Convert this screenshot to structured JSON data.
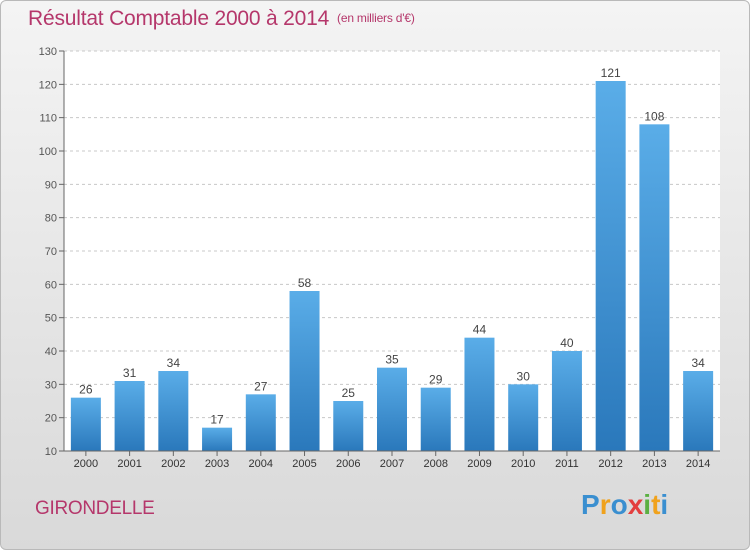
{
  "header": {
    "title": "Résultat Comptable 2000 à 2014",
    "subtitle": "(en milliers d'€)"
  },
  "footer": {
    "commune": "GIRONDELLE",
    "brand_letters": [
      "P",
      "r",
      "o",
      "x",
      "i",
      "t",
      "i"
    ],
    "brand_colors": [
      "#3a8fd0",
      "#f0a21c",
      "#3a8fd0",
      "#e33f3f",
      "#5bb043",
      "#f0a21c",
      "#3a8fd0"
    ]
  },
  "chart_data": {
    "type": "bar",
    "title": "Résultat Comptable 2000 à 2014",
    "subtitle": "(en milliers d'€)",
    "categories": [
      "2000",
      "2001",
      "2002",
      "2003",
      "2004",
      "2005",
      "2006",
      "2007",
      "2008",
      "2009",
      "2010",
      "2011",
      "2012",
      "2013",
      "2014"
    ],
    "values": [
      26,
      31,
      34,
      17,
      27,
      58,
      25,
      35,
      29,
      44,
      30,
      40,
      121,
      108,
      34
    ],
    "ylim": [
      10,
      130
    ],
    "yticks": [
      10,
      20,
      30,
      40,
      50,
      60,
      70,
      80,
      90,
      100,
      110,
      120,
      130
    ],
    "grid": true,
    "bar_color_top": "#5aade8",
    "bar_color_bottom": "#2a78bb"
  }
}
